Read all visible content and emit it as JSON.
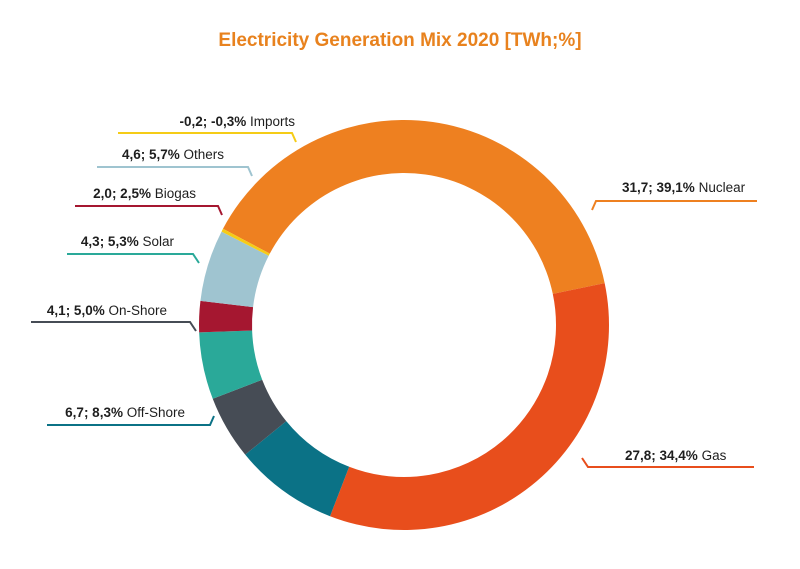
{
  "chart_data": {
    "type": "pie",
    "donut": true,
    "title": "Electricity Generation Mix 2020 [TWh;%]",
    "unit": "TWh",
    "slices": [
      {
        "key": "nuclear",
        "name": "Nuclear",
        "value": 31.7,
        "value_label": "31,7",
        "percent_label": "39,1%",
        "color": "#ee8020"
      },
      {
        "key": "gas",
        "name": "Gas",
        "value": 27.8,
        "value_label": "27,8",
        "percent_label": "34,4%",
        "color": "#e84e1c"
      },
      {
        "key": "offshore",
        "name": "Off-Shore",
        "value": 6.7,
        "value_label": "6,7",
        "percent_label": "8,3%",
        "color": "#0b7286"
      },
      {
        "key": "onshore",
        "name": "On-Shore",
        "value": 4.1,
        "value_label": "4,1",
        "percent_label": "5,0%",
        "color": "#464c55"
      },
      {
        "key": "solar",
        "name": "Solar",
        "value": 4.3,
        "value_label": "4,3",
        "percent_label": "5,3%",
        "color": "#2aa999"
      },
      {
        "key": "biogas",
        "name": "Biogas",
        "value": 2.0,
        "value_label": "2,0",
        "percent_label": "2,5%",
        "color": "#a51730"
      },
      {
        "key": "others",
        "name": "Others",
        "value": 4.6,
        "value_label": "4,6",
        "percent_label": "5,7%",
        "color": "#9fc4d0"
      },
      {
        "key": "imports",
        "name": "Imports",
        "value": -0.2,
        "value_label": "-0,2",
        "percent_label": "-0,3%",
        "color": "#f5cc17"
      }
    ]
  }
}
